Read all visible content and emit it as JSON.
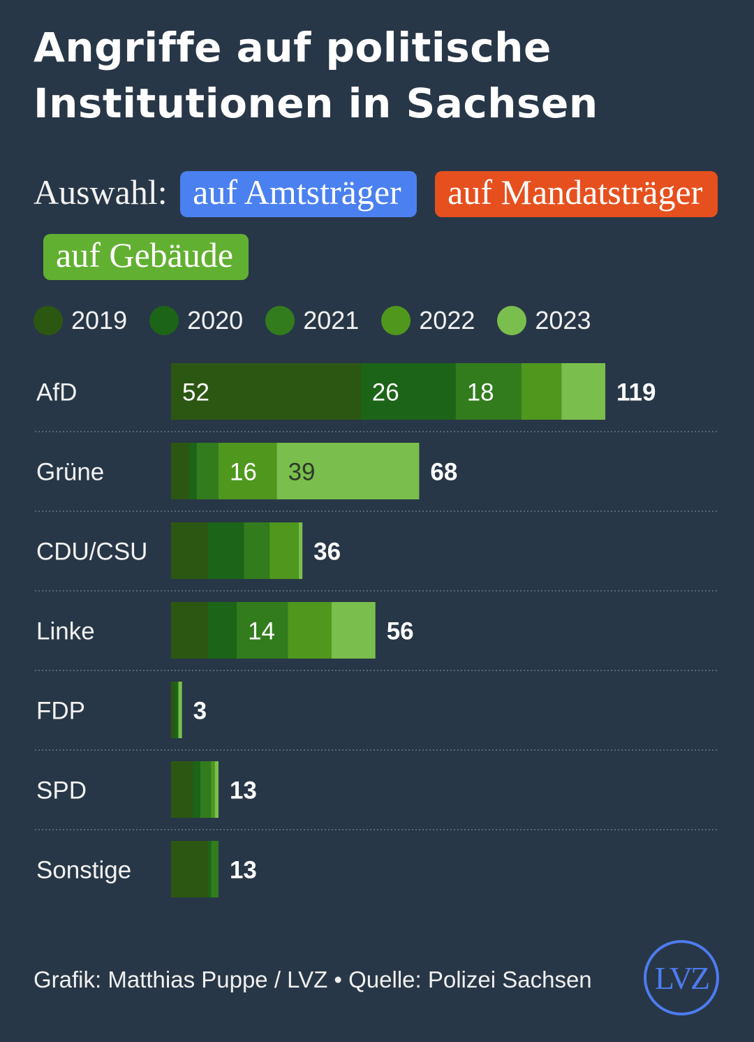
{
  "title": "Angriffe auf politische Institutionen in Sachsen",
  "selection": {
    "label": "Auswahl:",
    "chips": [
      {
        "label": "auf Amtsträger",
        "color": "#4a80f0"
      },
      {
        "label": "auf Mandatsträger",
        "color": "#e6501e"
      },
      {
        "label": "auf Gebäude",
        "color": "#62b031"
      }
    ]
  },
  "legend": [
    {
      "label": "2019",
      "color": "#2c5712"
    },
    {
      "label": "2020",
      "color": "#1c6417"
    },
    {
      "label": "2021",
      "color": "#327c1e"
    },
    {
      "label": "2022",
      "color": "#4f981d"
    },
    {
      "label": "2023",
      "color": "#7abf4d"
    }
  ],
  "chart_data": {
    "type": "bar",
    "orientation": "horizontal",
    "stacked": true,
    "categories": [
      "AfD",
      "Grüne",
      "CDU/CSU",
      "Linke",
      "FDP",
      "SPD",
      "Sonstige"
    ],
    "series": [
      {
        "name": "2019",
        "values": [
          52,
          5,
          10,
          10,
          1,
          6,
          10
        ]
      },
      {
        "name": "2020",
        "values": [
          26,
          2,
          10,
          8,
          1,
          2,
          1
        ]
      },
      {
        "name": "2021",
        "values": [
          18,
          6,
          7,
          14,
          0,
          3,
          2
        ]
      },
      {
        "name": "2022",
        "values": [
          11,
          16,
          8,
          12,
          0,
          1,
          0
        ]
      },
      {
        "name": "2023",
        "values": [
          12,
          39,
          1,
          12,
          1,
          1,
          0
        ]
      }
    ],
    "totals": [
      119,
      68,
      36,
      56,
      3,
      13,
      13
    ],
    "label_min_value": 14,
    "xlim": [
      0,
      119
    ],
    "grid": false,
    "legend_position": "top-left"
  },
  "footer": "Grafik: Matthias Puppe / LVZ • Quelle: Polizei Sachsen",
  "logo": "LVZ"
}
